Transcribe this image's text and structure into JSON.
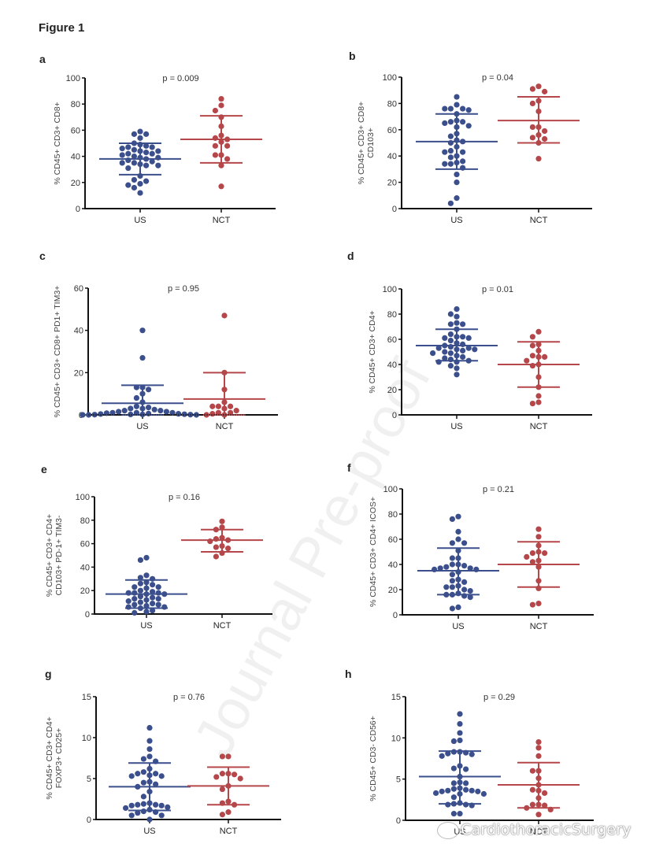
{
  "figure_title": "Figure 1",
  "watermark": "Journal Pre-proof",
  "source_badge": "CardiothoracicSurgery",
  "colors": {
    "US": "#3b4f8c",
    "NCT": "#b5474a",
    "axis": "#111111"
  },
  "chart_data": [
    {
      "panel": "a",
      "type": "scatter",
      "title": "p = 0.009",
      "ylabel": [
        "% CD45+ CD3+ CD8+"
      ],
      "categories": [
        "US",
        "NCT"
      ],
      "ylim": [
        0,
        100
      ],
      "yticks": [
        0,
        20,
        40,
        60,
        80,
        100
      ],
      "series": [
        {
          "name": "US",
          "mean": 38,
          "sd_low": 26,
          "sd_high": 50,
          "values": [
            59,
            57,
            57,
            54,
            50,
            49,
            48,
            47,
            47,
            46,
            45,
            44,
            44,
            43,
            42,
            42,
            41,
            40,
            39,
            39,
            38,
            37,
            36,
            35,
            35,
            34,
            33,
            33,
            31,
            25,
            22,
            21,
            19,
            18,
            16,
            12
          ]
        },
        {
          "name": "NCT",
          "mean": 53,
          "sd_low": 35,
          "sd_high": 71,
          "values": [
            84,
            79,
            75,
            70,
            63,
            56,
            54,
            53,
            51,
            48,
            48,
            41,
            41,
            38,
            33,
            17
          ]
        }
      ]
    },
    {
      "panel": "b",
      "type": "scatter",
      "title": "p = 0.04",
      "ylabel": [
        "% CD45+ CD3+ CD8+",
        "CD103+"
      ],
      "categories": [
        "US",
        "NCT"
      ],
      "ylim": [
        0,
        100
      ],
      "yticks": [
        0,
        20,
        40,
        60,
        80,
        100
      ],
      "series": [
        {
          "name": "US",
          "mean": 51,
          "sd_low": 30,
          "sd_high": 72,
          "values": [
            85,
            79,
            76,
            76,
            76,
            75,
            72,
            67,
            66,
            66,
            65,
            63,
            62,
            57,
            55,
            52,
            51,
            50,
            47,
            44,
            43,
            43,
            40,
            39,
            36,
            35,
            34,
            34,
            31,
            26,
            20,
            8,
            4
          ]
        },
        {
          "name": "NCT",
          "mean": 67,
          "sd_low": 50,
          "sd_high": 85,
          "values": [
            93,
            91,
            89,
            82,
            80,
            74,
            62,
            62,
            59,
            56,
            54,
            53,
            50,
            38
          ]
        }
      ]
    },
    {
      "panel": "c",
      "type": "scatter",
      "title": "p = 0.95",
      "ylabel": [
        "% CD45+ CD3+ CD8+ PD1+ TIM3+"
      ],
      "categories": [
        "US",
        "NCT"
      ],
      "ylim": [
        0,
        60
      ],
      "yticks": [
        0,
        20,
        40,
        60
      ],
      "series": [
        {
          "name": "US",
          "mean": 5.5,
          "sd_low": 0,
          "sd_high": 14,
          "values": [
            40,
            27,
            13,
            13,
            12,
            10,
            8,
            6,
            4,
            3.5,
            3,
            3,
            2.5,
            2,
            2,
            1.5,
            1.5,
            1,
            1,
            1,
            0.8,
            0.6,
            0.5,
            0.4,
            0.3,
            0.2,
            0.2,
            0.1,
            0.1,
            0,
            0,
            0
          ]
        },
        {
          "name": "NCT",
          "mean": 7.5,
          "sd_low": 0,
          "sd_high": 20,
          "values": [
            47,
            20,
            12,
            6,
            4,
            4,
            4,
            3,
            2,
            1,
            1,
            0.5,
            0,
            0
          ]
        }
      ]
    },
    {
      "panel": "d",
      "type": "scatter",
      "title": "p = 0.01",
      "ylabel": [
        "% CD45+ CD3+ CD4+"
      ],
      "categories": [
        "US",
        "NCT"
      ],
      "ylim": [
        0,
        100
      ],
      "yticks": [
        0,
        20,
        40,
        60,
        80,
        100
      ],
      "series": [
        {
          "name": "US",
          "mean": 55,
          "sd_low": 43,
          "sd_high": 68,
          "values": [
            84,
            80,
            78,
            73,
            72,
            72,
            68,
            64,
            62,
            62,
            61,
            61,
            59,
            57,
            56,
            55,
            54,
            53,
            53,
            52,
            52,
            51,
            50,
            49,
            49,
            47,
            46,
            45,
            44,
            43,
            42,
            42,
            39,
            37,
            32
          ]
        },
        {
          "name": "NCT",
          "mean": 40,
          "sd_low": 22,
          "sd_high": 58,
          "values": [
            66,
            62,
            56,
            55,
            51,
            47,
            46,
            46,
            43,
            40,
            39,
            30,
            22,
            15,
            10,
            9
          ]
        }
      ]
    },
    {
      "panel": "e",
      "type": "scatter",
      "title": "p = 0.16",
      "ylabel": [
        "% CD45+ CD3+ CD4+",
        "CD103+ PD-1+ TIM3-"
      ],
      "categories": [
        "US",
        "NCT"
      ],
      "ylim": [
        0,
        100
      ],
      "yticks": [
        0,
        20,
        40,
        60,
        80,
        100
      ],
      "series": [
        {
          "name": "US",
          "mean": 17,
          "sd_low": 5,
          "sd_high": 29,
          "values": [
            48,
            46,
            33,
            31,
            30,
            27,
            26,
            25,
            23,
            23,
            22,
            20,
            19,
            18,
            18,
            18,
            17,
            17,
            15,
            14,
            13,
            13,
            12,
            11,
            10,
            9,
            8,
            8,
            7,
            6,
            6,
            5,
            3,
            2,
            1
          ]
        },
        {
          "name": "NCT",
          "mean": 63,
          "sd_low": 53,
          "sd_high": 72,
          "values": [
            79,
            74,
            72,
            65,
            64,
            63,
            62,
            58,
            57,
            56,
            52,
            49
          ]
        }
      ]
    },
    {
      "panel": "f",
      "type": "scatter",
      "title": "p = 0.21",
      "ylabel": [
        "% CD45+ CD3+ CD4+ ICOS+"
      ],
      "categories": [
        "US",
        "NCT"
      ],
      "ylim": [
        0,
        100
      ],
      "yticks": [
        0,
        20,
        40,
        60,
        80,
        100
      ],
      "series": [
        {
          "name": "US",
          "mean": 35,
          "sd_low": 16,
          "sd_high": 53,
          "values": [
            78,
            76,
            66,
            60,
            57,
            57,
            51,
            45,
            45,
            40,
            40,
            39,
            38,
            37,
            37,
            36,
            36,
            34,
            32,
            28,
            27,
            26,
            23,
            22,
            22,
            20,
            19,
            17,
            16,
            16,
            15,
            14,
            6,
            5
          ]
        },
        {
          "name": "NCT",
          "mean": 40,
          "sd_low": 22,
          "sd_high": 58,
          "values": [
            68,
            62,
            55,
            50,
            49,
            49,
            46,
            43,
            42,
            38,
            27,
            21,
            9,
            8
          ]
        }
      ]
    },
    {
      "panel": "g",
      "type": "scatter",
      "title": "p = 0.76",
      "ylabel": [
        "% CD45+ CD3+ CD4+",
        "FOXP3+ CD25+"
      ],
      "categories": [
        "US",
        "NCT"
      ],
      "ylim": [
        0,
        15
      ],
      "yticks": [
        0,
        5,
        10,
        15
      ],
      "series": [
        {
          "name": "US",
          "mean": 4.0,
          "sd_low": 1.1,
          "sd_high": 6.9,
          "values": [
            11.2,
            9.6,
            8.6,
            7.7,
            7.4,
            7.1,
            6.2,
            5.8,
            5.6,
            5.6,
            5.4,
            5.3,
            5.3,
            4.6,
            4.5,
            4.3,
            4.0,
            3.4,
            2.8,
            2.0,
            1.9,
            1.8,
            1.8,
            1.7,
            1.7,
            1.5,
            1.4,
            1.2,
            1.0,
            0.9,
            0.8,
            0.5,
            0.5,
            0.0
          ]
        },
        {
          "name": "NCT",
          "mean": 4.1,
          "sd_low": 1.8,
          "sd_high": 6.4,
          "values": [
            7.7,
            7.7,
            5.6,
            5.6,
            5.5,
            5.2,
            5.0,
            4.1,
            3.7,
            2.2,
            2.0,
            1.8,
            0.9,
            0.6
          ]
        }
      ]
    },
    {
      "panel": "h",
      "type": "scatter",
      "title": "p = 0.29",
      "ylabel": [
        "% CD45+ CD3- CD56+"
      ],
      "categories": [
        "US",
        "NCT"
      ],
      "ylim": [
        0,
        15
      ],
      "yticks": [
        0,
        5,
        10,
        15
      ],
      "series": [
        {
          "name": "US",
          "mean": 5.3,
          "sd_low": 2.0,
          "sd_high": 8.4,
          "values": [
            12.9,
            11.7,
            10.6,
            9.7,
            9.6,
            8.3,
            8.3,
            8.2,
            8.1,
            8.0,
            7.8,
            6.6,
            6.3,
            6.2,
            5.3,
            4.6,
            4.5,
            4.5,
            3.9,
            3.8,
            3.7,
            3.6,
            3.6,
            3.5,
            3.5,
            3.3,
            3.2,
            3.2,
            2.8,
            2.1,
            2.0,
            1.9,
            1.9,
            1.8,
            0.8,
            0.8
          ]
        },
        {
          "name": "NCT",
          "mean": 4.3,
          "sd_low": 1.5,
          "sd_high": 7.0,
          "values": [
            9.5,
            8.8,
            7.8,
            6.0,
            6.0,
            5.1,
            4.3,
            3.7,
            3.6,
            3.3,
            2.7,
            1.9,
            1.9,
            1.8,
            1.5,
            1.3,
            0.7
          ]
        }
      ]
    }
  ]
}
